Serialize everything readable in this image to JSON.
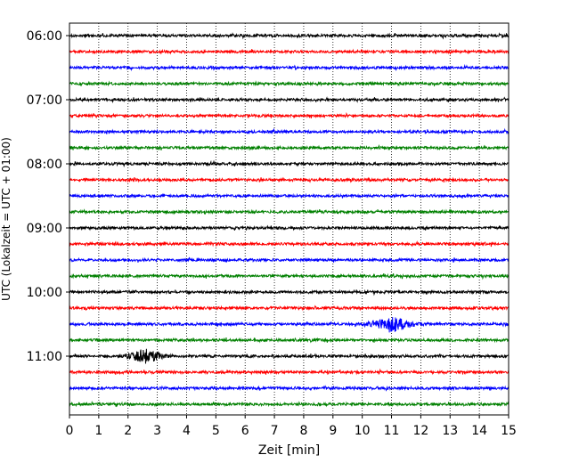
{
  "chart_data": {
    "type": "line",
    "xlabel": "Zeit  [min]",
    "ylabel": "UTC (Lokalzeit = UTC + 01:00)",
    "xlim": [
      0,
      15
    ],
    "x_ticks": [
      "0",
      "1",
      "2",
      "3",
      "4",
      "5",
      "6",
      "7",
      "8",
      "9",
      "10",
      "11",
      "12",
      "13",
      "14",
      "15"
    ],
    "y_ticks": [
      {
        "label": "06:00",
        "hour_offset": 0
      },
      {
        "label": "07:00",
        "hour_offset": 1
      },
      {
        "label": "08:00",
        "hour_offset": 2
      },
      {
        "label": "09:00",
        "hour_offset": 3
      },
      {
        "label": "10:00",
        "hour_offset": 4
      },
      {
        "label": "11:00",
        "hour_offset": 5
      }
    ],
    "trace_interval_min": 15,
    "trace_colors": [
      "#000000",
      "#ff0000",
      "#0000ff",
      "#008000"
    ],
    "grid": "vertical-dotted",
    "traces": [
      {
        "start": "06:00",
        "color": "#000000"
      },
      {
        "start": "06:15",
        "color": "#ff0000"
      },
      {
        "start": "06:30",
        "color": "#0000ff"
      },
      {
        "start": "06:45",
        "color": "#008000"
      },
      {
        "start": "07:00",
        "color": "#000000"
      },
      {
        "start": "07:15",
        "color": "#ff0000"
      },
      {
        "start": "07:30",
        "color": "#0000ff"
      },
      {
        "start": "07:45",
        "color": "#008000"
      },
      {
        "start": "08:00",
        "color": "#000000"
      },
      {
        "start": "08:15",
        "color": "#ff0000"
      },
      {
        "start": "08:30",
        "color": "#0000ff"
      },
      {
        "start": "08:45",
        "color": "#008000"
      },
      {
        "start": "09:00",
        "color": "#000000"
      },
      {
        "start": "09:15",
        "color": "#ff0000"
      },
      {
        "start": "09:30",
        "color": "#0000ff"
      },
      {
        "start": "09:45",
        "color": "#008000"
      },
      {
        "start": "10:00",
        "color": "#000000"
      },
      {
        "start": "10:15",
        "color": "#ff0000"
      },
      {
        "start": "10:30",
        "color": "#0000ff",
        "event": {
          "start_min": 9.6,
          "end_min": 12.2,
          "peak_min": 11.0
        }
      },
      {
        "start": "10:45",
        "color": "#008000"
      },
      {
        "start": "11:00",
        "color": "#000000",
        "event": {
          "start_min": 1.6,
          "end_min": 3.6,
          "peak_min": 2.6
        }
      },
      {
        "start": "11:15",
        "color": "#ff0000"
      },
      {
        "start": "11:30",
        "color": "#0000ff"
      },
      {
        "start": "11:45",
        "color": "#008000"
      }
    ]
  }
}
